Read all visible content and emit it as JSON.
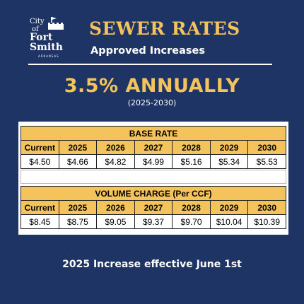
{
  "logo": {
    "line1": "City",
    "line2": "of",
    "line3": "Fort",
    "line4": "Smith",
    "line5": "ARKANSAS"
  },
  "header": {
    "title": "SEWER RATES",
    "subtitle": "Approved Increases"
  },
  "headline": {
    "rate": "3.5% ANNUALLY",
    "period": "(2025-2030)"
  },
  "base_rate": {
    "title": "BASE RATE",
    "columns": [
      "Current",
      "2025",
      "2026",
      "2027",
      "2028",
      "2029",
      "2030"
    ],
    "values": [
      "$4.50",
      "$4.66",
      "$4.82",
      "$4.99",
      "$5.16",
      "$5.34",
      "$5.53"
    ]
  },
  "volume_charge": {
    "title": "VOLUME CHARGE (Per CCF)",
    "columns": [
      "Current",
      "2025",
      "2026",
      "2027",
      "2028",
      "2029",
      "2030"
    ],
    "values": [
      "$8.45",
      "$8.75",
      "$9.05",
      "$9.37",
      "$9.70",
      "$10.04",
      "$10.39"
    ]
  },
  "footer": "2025 Increase effective June 1st",
  "colors": {
    "background": "#1e3464",
    "accent": "#f5c35c"
  }
}
